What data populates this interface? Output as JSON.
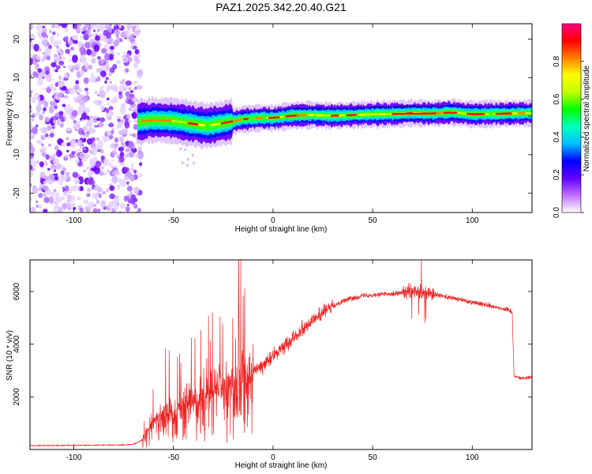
{
  "title": "PAZ1.2025.342.20.40.G21",
  "chart_data": [
    {
      "type": "heatmap",
      "name": "spectrogram",
      "xlabel": "Height of straight line (km)",
      "ylabel": "Frequency (Hz)",
      "xlim": [
        -122,
        130
      ],
      "ylim": [
        -25,
        24
      ],
      "xticks": [
        -100,
        -50,
        0,
        50,
        100
      ],
      "yticks": [
        -20,
        -10,
        0,
        10,
        20
      ],
      "noise_region_x": [
        -122,
        -68
      ],
      "ridge": {
        "x": [
          -68,
          -60,
          -50,
          -40,
          -33,
          -25,
          -15,
          -5,
          0,
          10,
          20,
          30,
          40,
          50,
          60,
          70,
          80,
          90,
          100,
          110,
          120,
          130
        ],
        "freq": [
          -1.5,
          -1.0,
          -1.2,
          -2.0,
          -2.5,
          -1.8,
          -0.8,
          -0.4,
          -0.5,
          0.2,
          0.3,
          0.1,
          0.3,
          0.5,
          0.6,
          0.8,
          0.7,
          1.0,
          0.5,
          0.6,
          0.7,
          0.8
        ]
      },
      "colorbar": {
        "label": "Normalized spectral amplitude",
        "ticks": [
          "0.0",
          "0.2",
          "0.4",
          "0.6",
          "0.8"
        ],
        "range": [
          0,
          1
        ],
        "colors": [
          "#ffffff",
          "#c070ff",
          "#6000ff",
          "#0000ff",
          "#00c0ff",
          "#00ffc0",
          "#00ff00",
          "#c0ff00",
          "#ffff00",
          "#ff8000",
          "#ff0000",
          "#ff0080"
        ]
      }
    },
    {
      "type": "line",
      "name": "snr",
      "color": "#ee2222",
      "xlabel": "Height of straight line (km)",
      "ylabel": "SNR (10 * v/v)",
      "xlim": [
        -122,
        130
      ],
      "ylim": [
        0,
        7200
      ],
      "xticks": [
        -100,
        -50,
        0,
        50,
        100
      ],
      "yticks": [
        2000,
        4000,
        6000
      ],
      "envelope": {
        "x": [
          -122,
          -75,
          -70,
          -66,
          -62,
          -55,
          -45,
          -35,
          -25,
          -15,
          -5,
          5,
          15,
          25,
          35,
          45,
          55,
          65,
          72,
          80,
          90,
          100,
          110,
          120,
          121,
          125,
          130
        ],
        "y": [
          150,
          170,
          200,
          350,
          900,
          1300,
          1700,
          2100,
          2400,
          2700,
          3200,
          3900,
          4600,
          5200,
          5650,
          5850,
          5900,
          5950,
          6000,
          5900,
          5750,
          5600,
          5450,
          5250,
          2800,
          2700,
          2750
        ]
      }
    }
  ]
}
